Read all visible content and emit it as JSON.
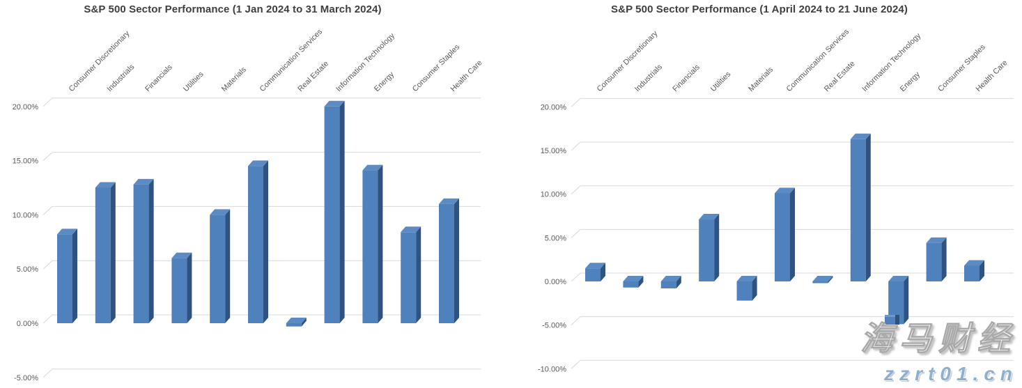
{
  "colors": {
    "bar_front": "#4F81BD",
    "bar_side": "#2E5380",
    "bar_top": "#5C8BC4",
    "gridline": "#D9D9D9",
    "title_text": "#3F3F3F",
    "axis_text": "#595959",
    "watermark_blue": "#8FAFD1"
  },
  "watermark": {
    "brand": "海马财经",
    "site": "zzrt01.cn"
  },
  "chart_data": [
    {
      "type": "bar",
      "style": "3d-column",
      "title": "S&P 500 Sector Performance (1 Jan 2024 to 31 March 2024)",
      "categories": [
        "Consumer Discretionary",
        "Industrials",
        "Financials",
        "Utilities",
        "Materials",
        "Communication Services",
        "Real Estate",
        "Information Technology",
        "Energy",
        "Consumer Staples",
        "Health Care"
      ],
      "values": [
        8.2,
        12.5,
        12.8,
        6.0,
        10.0,
        14.5,
        -0.3,
        20.0,
        14.1,
        8.4,
        11.0
      ],
      "xlabel": "",
      "ylabel": "",
      "ylim": [
        -5,
        20
      ],
      "ytick_step": 5,
      "ytick_decimals": 2,
      "ytick_suffix": "%",
      "grid": true,
      "legend": false
    },
    {
      "type": "bar",
      "style": "3d-column",
      "title": "S&P 500 Sector Performance (1 April 2024 to 21 June 2024)",
      "categories": [
        "Consumer Discretionary",
        "Industrials",
        "Financials",
        "Utilities",
        "Materials",
        "Communication Services",
        "Real Estate",
        "Information Technology",
        "Energy",
        "Consumer Staples",
        "Health Care"
      ],
      "values": [
        1.5,
        -0.7,
        -0.8,
        7.1,
        -2.2,
        10.1,
        -0.2,
        16.3,
        -4.9,
        4.4,
        1.8
      ],
      "xlabel": "",
      "ylabel": "",
      "ylim": [
        -10,
        20
      ],
      "ytick_step": 5,
      "ytick_decimals": 2,
      "ytick_suffix": "%",
      "grid": true,
      "legend": false
    }
  ]
}
